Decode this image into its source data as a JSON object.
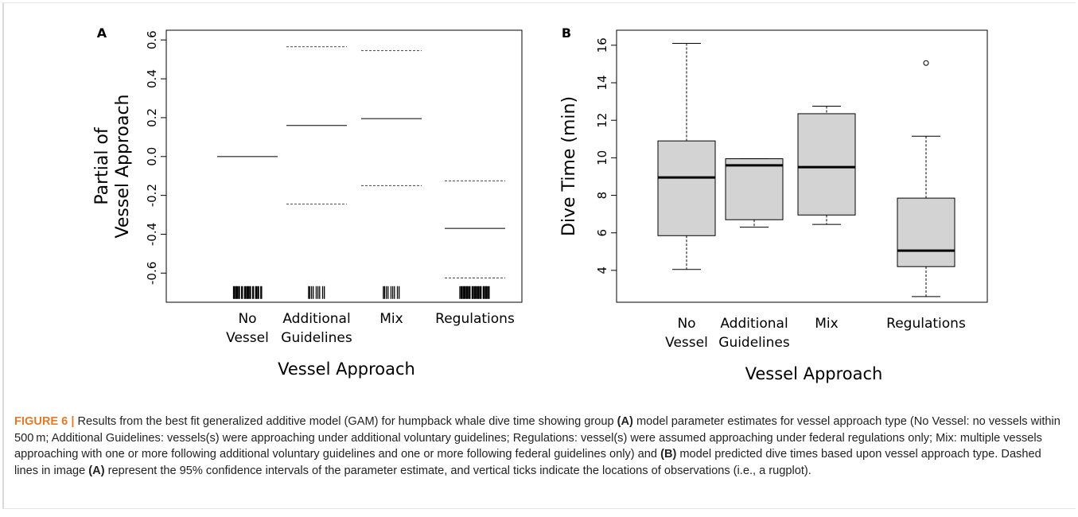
{
  "chart_data": [
    {
      "panel": "A",
      "type": "line",
      "categories": [
        "No\nVessel",
        "Additional\nGuidelines",
        "Mix",
        "Regulations"
      ],
      "xlabel": "Vessel Approach",
      "ylabel": "Partial of\nVessel Approach",
      "ylim": [
        -0.75,
        0.65
      ],
      "yticks": [
        "0.6",
        "0.4",
        "0.2",
        "0.0",
        "-0.2",
        "-0.4",
        "-0.6"
      ],
      "series": [
        {
          "estimate": [
            0.0,
            0.16,
            0.195,
            -0.37
          ]
        },
        {
          "upper_95": [
            null,
            0.565,
            0.545,
            -0.125
          ]
        },
        {
          "lower_95": [
            null,
            -0.245,
            -0.15,
            -0.625
          ]
        }
      ],
      "rug_observations": [
        24,
        9,
        9,
        28
      ],
      "rug_y": -0.7
    },
    {
      "panel": "B",
      "type": "box",
      "categories": [
        "No\nVessel",
        "Additional\nGuidelines",
        "Mix",
        "Regulations"
      ],
      "xlabel": "Vessel Approach",
      "ylabel": "Dive Time (min)",
      "ylim": [
        2.3,
        16.8
      ],
      "yticks": [
        "4",
        "6",
        "8",
        "10",
        "12",
        "14",
        "16"
      ],
      "boxes": [
        {
          "min": 4.05,
          "q1": 5.85,
          "median": 8.95,
          "q3": 10.9,
          "max": 16.1
        },
        {
          "min": 6.3,
          "q1": 6.7,
          "median": 9.6,
          "q3": 9.95,
          "max": 9.95
        },
        {
          "min": 6.45,
          "q1": 6.95,
          "median": 9.5,
          "q3": 12.35,
          "max": 12.75
        },
        {
          "min": 2.6,
          "q1": 4.2,
          "median": 5.05,
          "q3": 7.85,
          "max": 11.15,
          "outliers": [
            15.05
          ]
        }
      ],
      "box_fill": "#d3d3d3"
    }
  ],
  "caption": {
    "figure_label": "FIGURE 6 |",
    "part1": " Results from the best fit generalized additive model (GAM) for humpback whale dive time showing group ",
    "ref_a1": "(A)",
    "part2": " model parameter estimates for vessel approach type (No Vessel: no vessels within 500 m; Additional Guidelines: vessels(s) were approaching under additional voluntary guidelines; Regulations: vessel(s) were assumed approaching under federal regulations only; Mix: multiple vessels approaching with one or more following additional voluntary guidelines and one or more following federal guidelines only) and ",
    "ref_b": "(B)",
    "part3": " model predicted dive times based upon vessel approach type. Dashed lines in image ",
    "ref_a2": "(A)",
    "part4": " represent the 95% confidence intervals of the parameter estimate, and vertical ticks indicate the locations of observations (i.e., a rugplot)."
  }
}
